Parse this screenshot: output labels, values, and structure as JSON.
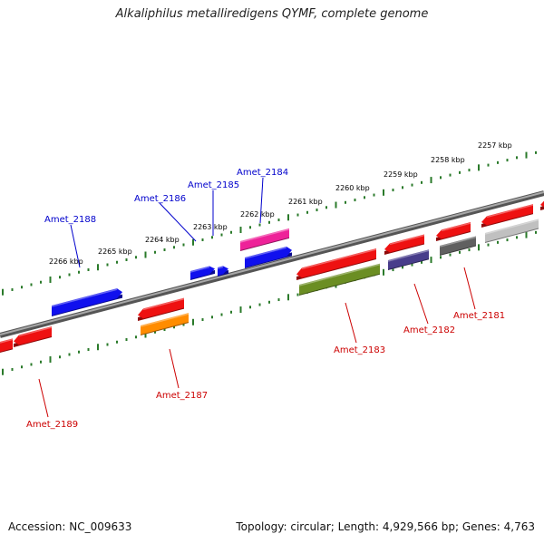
{
  "title": "Alkaliphilus metalliredigens QYMF, complete genome",
  "footer": {
    "accession": "Accession: NC_009633",
    "summary": "Topology: circular; Length: 4,929,566 bp; Genes: 4,763"
  },
  "colors": {
    "forward_label": "#0000cc",
    "reverse_label": "#cc0000",
    "backbone": "#888888",
    "ticks": "#2a7a2a"
  },
  "scale_labels": [
    "2257 kbp",
    "2258 kbp",
    "2259 kbp",
    "2260 kbp",
    "2261 kbp",
    "2262 kbp",
    "2263 kbp",
    "2264 kbp",
    "2265 kbp",
    "2266 kbp"
  ],
  "gene_labels_top": [
    "Amet_2184",
    "Amet_2185",
    "Amet_2186",
    "Amet_2188"
  ],
  "gene_labels_bottom": [
    "Amet_2181",
    "Amet_2182",
    "Amet_2183",
    "Amet_2187",
    "Amet_2189"
  ],
  "feature_colors": {
    "red": "#ee1111",
    "blue": "#1010ee",
    "magenta": "#ee2299",
    "olive": "#6b8e23",
    "orange": "#ff8c00",
    "slate": "#483d8b",
    "dimgray": "#606060",
    "lightgray": "#c0c0c0"
  }
}
